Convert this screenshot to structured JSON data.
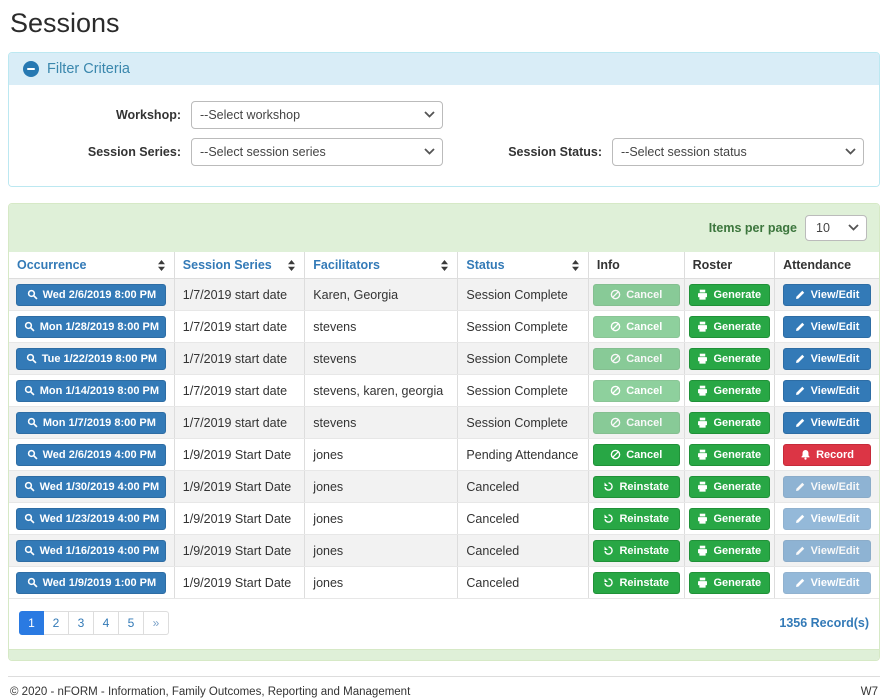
{
  "page": {
    "title": "Sessions"
  },
  "colors": {
    "primary_blue": "#337ab7",
    "success_green": "#28a745",
    "danger_red": "#dc3545",
    "active_page_blue": "#2a7ae2",
    "panel_green_bg": "#dff0d8",
    "panel_green_border": "#d6e9c6",
    "panel_blue_bg": "#d9edf7",
    "panel_blue_border": "#bce8f1",
    "items_per_page_text": "#3c763d",
    "filter_title_text": "#3a87ad"
  },
  "filter": {
    "title": "Filter Criteria",
    "collapse_icon": "minus-circle-icon",
    "fields": [
      {
        "label": "Workshop:",
        "value": "--Select workshop"
      },
      {
        "label": "Session Series:",
        "value": "--Select session series"
      },
      {
        "label": "Session Status:",
        "value": "--Select session status"
      }
    ]
  },
  "table": {
    "items_per_page_label": "Items per page",
    "items_per_page_value": "10",
    "columns": [
      {
        "label": "Occurrence",
        "sortable": true,
        "width": "19%"
      },
      {
        "label": "Session Series",
        "sortable": true,
        "width": "15%"
      },
      {
        "label": "Facilitators",
        "sortable": true,
        "width": "17.6%"
      },
      {
        "label": "Status",
        "sortable": true,
        "width": "15%"
      },
      {
        "label": "Info",
        "sortable": false,
        "width": "11%"
      },
      {
        "label": "Roster",
        "sortable": false,
        "width": "10.4%"
      },
      {
        "label": "Attendance",
        "sortable": false,
        "width": "12%"
      }
    ],
    "rows": [
      {
        "occurrence": "Wed 2/6/2019 8:00 PM",
        "series": "1/7/2019 start date",
        "facilitators": "Karen, Georgia",
        "status": "Session Complete",
        "info": {
          "label": "Cancel",
          "icon": "ban-icon",
          "style": "green",
          "disabled": true
        },
        "roster": {
          "label": "Generate",
          "icon": "printer-icon",
          "style": "green",
          "disabled": false
        },
        "attendance": {
          "label": "View/Edit",
          "icon": "pencil-icon",
          "style": "blue",
          "disabled": false
        }
      },
      {
        "occurrence": "Mon 1/28/2019 8:00 PM",
        "series": "1/7/2019 start date",
        "facilitators": "stevens",
        "status": "Session Complete",
        "info": {
          "label": "Cancel",
          "icon": "ban-icon",
          "style": "green",
          "disabled": true
        },
        "roster": {
          "label": "Generate",
          "icon": "printer-icon",
          "style": "green",
          "disabled": false
        },
        "attendance": {
          "label": "View/Edit",
          "icon": "pencil-icon",
          "style": "blue",
          "disabled": false
        }
      },
      {
        "occurrence": "Tue 1/22/2019 8:00 PM",
        "series": "1/7/2019 start date",
        "facilitators": "stevens",
        "status": "Session Complete",
        "info": {
          "label": "Cancel",
          "icon": "ban-icon",
          "style": "green",
          "disabled": true
        },
        "roster": {
          "label": "Generate",
          "icon": "printer-icon",
          "style": "green",
          "disabled": false
        },
        "attendance": {
          "label": "View/Edit",
          "icon": "pencil-icon",
          "style": "blue",
          "disabled": false
        }
      },
      {
        "occurrence": "Mon 1/14/2019 8:00 PM",
        "series": "1/7/2019 start date",
        "facilitators": "stevens, karen, georgia",
        "status": "Session Complete",
        "info": {
          "label": "Cancel",
          "icon": "ban-icon",
          "style": "green",
          "disabled": true
        },
        "roster": {
          "label": "Generate",
          "icon": "printer-icon",
          "style": "green",
          "disabled": false
        },
        "attendance": {
          "label": "View/Edit",
          "icon": "pencil-icon",
          "style": "blue",
          "disabled": false
        }
      },
      {
        "occurrence": "Mon 1/7/2019 8:00 PM",
        "series": "1/7/2019 start date",
        "facilitators": "stevens",
        "status": "Session Complete",
        "info": {
          "label": "Cancel",
          "icon": "ban-icon",
          "style": "green",
          "disabled": true
        },
        "roster": {
          "label": "Generate",
          "icon": "printer-icon",
          "style": "green",
          "disabled": false
        },
        "attendance": {
          "label": "View/Edit",
          "icon": "pencil-icon",
          "style": "blue",
          "disabled": false
        }
      },
      {
        "occurrence": "Wed 2/6/2019 4:00 PM",
        "series": "1/9/2019 Start Date",
        "facilitators": "jones",
        "status": "Pending Attendance",
        "info": {
          "label": "Cancel",
          "icon": "ban-icon",
          "style": "green",
          "disabled": false
        },
        "roster": {
          "label": "Generate",
          "icon": "printer-icon",
          "style": "green",
          "disabled": false
        },
        "attendance": {
          "label": "Record",
          "icon": "bell-icon",
          "style": "red",
          "disabled": false
        }
      },
      {
        "occurrence": "Wed 1/30/2019 4:00 PM",
        "series": "1/9/2019 Start Date",
        "facilitators": "jones",
        "status": "Canceled",
        "info": {
          "label": "Reinstate",
          "icon": "reinstate-icon",
          "style": "green",
          "disabled": false
        },
        "roster": {
          "label": "Generate",
          "icon": "printer-icon",
          "style": "green",
          "disabled": false
        },
        "attendance": {
          "label": "View/Edit",
          "icon": "pencil-icon",
          "style": "blue",
          "disabled": true
        }
      },
      {
        "occurrence": "Wed 1/23/2019 4:00 PM",
        "series": "1/9/2019 Start Date",
        "facilitators": "jones",
        "status": "Canceled",
        "info": {
          "label": "Reinstate",
          "icon": "reinstate-icon",
          "style": "green",
          "disabled": false
        },
        "roster": {
          "label": "Generate",
          "icon": "printer-icon",
          "style": "green",
          "disabled": false
        },
        "attendance": {
          "label": "View/Edit",
          "icon": "pencil-icon",
          "style": "blue",
          "disabled": true
        }
      },
      {
        "occurrence": "Wed 1/16/2019 4:00 PM",
        "series": "1/9/2019 Start Date",
        "facilitators": "jones",
        "status": "Canceled",
        "info": {
          "label": "Reinstate",
          "icon": "reinstate-icon",
          "style": "green",
          "disabled": false
        },
        "roster": {
          "label": "Generate",
          "icon": "printer-icon",
          "style": "green",
          "disabled": false
        },
        "attendance": {
          "label": "View/Edit",
          "icon": "pencil-icon",
          "style": "blue",
          "disabled": true
        }
      },
      {
        "occurrence": "Wed 1/9/2019 1:00 PM",
        "series": "1/9/2019 Start Date",
        "facilitators": "jones",
        "status": "Canceled",
        "info": {
          "label": "Reinstate",
          "icon": "reinstate-icon",
          "style": "green",
          "disabled": false
        },
        "roster": {
          "label": "Generate",
          "icon": "printer-icon",
          "style": "green",
          "disabled": false
        },
        "attendance": {
          "label": "View/Edit",
          "icon": "pencil-icon",
          "style": "blue",
          "disabled": true
        }
      }
    ],
    "pagination": [
      "1",
      "2",
      "3",
      "4",
      "5",
      "»"
    ],
    "active_page": "1",
    "record_count": "1356 Record(s)"
  },
  "footer": {
    "copyright": "© 2020 - nFORM - Information, Family Outcomes, Reporting and Management",
    "version": "W7"
  }
}
